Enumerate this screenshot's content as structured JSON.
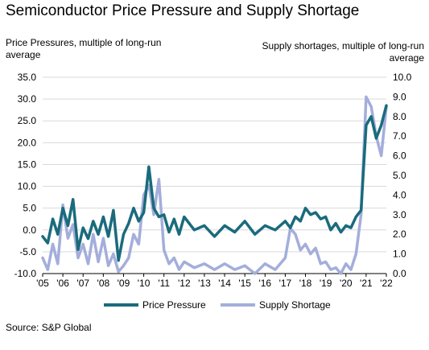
{
  "title": "Semiconductor Price Pressure and Supply Shortage",
  "source": "Source: S&P Global",
  "chart_data": {
    "type": "line",
    "title": "Semiconductor Price Pressure and Supply Shortage",
    "ylabel": "Price Pressures, multiple of long-run average",
    "y2label": "Supply shortages, multiple of long-run average",
    "ylim": [
      -10,
      35
    ],
    "y2lim": [
      0,
      10
    ],
    "xlim": [
      2005,
      2022
    ],
    "xticks": [
      "'05",
      "'06",
      "'07",
      "'08",
      "'09",
      "'10",
      "'11",
      "'12",
      "'13",
      "'14",
      "'15",
      "'16",
      "'17",
      "'18",
      "'19",
      "'20",
      "'21",
      "'22"
    ],
    "yticks": [
      "35.0",
      "30.0",
      "25.0",
      "20.0",
      "15.0",
      "10.0",
      "5.0",
      "0.0",
      "-5.0",
      "-10.0"
    ],
    "y2ticks": [
      "10.0",
      "9.0",
      "8.0",
      "7.0",
      "6.0",
      "5.0",
      "4.0",
      "3.0",
      "2.0",
      "1.0",
      "0.0"
    ],
    "grid": "horizontal",
    "legend_position": "bottom",
    "colors": {
      "price": "#1a6b7c",
      "supply": "#a4aedb",
      "grid": "#d9d9d9"
    },
    "series": [
      {
        "name": "Price Pressure",
        "axis": "left",
        "x": [
          2005.0,
          2005.25,
          2005.5,
          2005.75,
          2006.0,
          2006.25,
          2006.5,
          2006.75,
          2007.0,
          2007.25,
          2007.5,
          2007.75,
          2008.0,
          2008.25,
          2008.5,
          2008.75,
          2009.0,
          2009.25,
          2009.5,
          2009.75,
          2010.0,
          2010.25,
          2010.5,
          2010.75,
          2011.0,
          2011.25,
          2011.5,
          2011.75,
          2012.0,
          2012.5,
          2013.0,
          2013.5,
          2014.0,
          2014.5,
          2015.0,
          2015.5,
          2016.0,
          2016.5,
          2017.0,
          2017.25,
          2017.5,
          2017.75,
          2018.0,
          2018.25,
          2018.5,
          2018.75,
          2019.0,
          2019.25,
          2019.5,
          2019.75,
          2020.0,
          2020.25,
          2020.5,
          2020.75,
          2021.0,
          2021.25,
          2021.5,
          2021.75,
          2022.0
        ],
        "y": [
          -1.5,
          -3.0,
          2.5,
          -1.0,
          5.0,
          1.0,
          7.0,
          -4.5,
          0.5,
          -2.0,
          2.0,
          -1.0,
          3.0,
          -1.5,
          4.5,
          -7.0,
          -1.0,
          1.5,
          5.0,
          2.0,
          4.0,
          14.5,
          5.0,
          3.0,
          3.5,
          -0.5,
          2.5,
          -1.0,
          3.0,
          0.0,
          1.0,
          -1.5,
          1.0,
          -0.5,
          2.0,
          -1.0,
          1.0,
          0.0,
          2.0,
          0.5,
          3.0,
          2.0,
          5.0,
          3.5,
          4.0,
          2.5,
          3.0,
          0.0,
          1.5,
          -0.5,
          1.0,
          0.5,
          3.0,
          4.5,
          24.0,
          26.0,
          21.0,
          24.0,
          28.5
        ]
      },
      {
        "name": "Supply Shortage",
        "axis": "right",
        "x": [
          2005.0,
          2005.25,
          2005.5,
          2005.75,
          2006.0,
          2006.25,
          2006.5,
          2006.75,
          2007.0,
          2007.25,
          2007.5,
          2007.75,
          2008.0,
          2008.25,
          2008.5,
          2008.75,
          2009.0,
          2009.25,
          2009.5,
          2009.75,
          2010.0,
          2010.25,
          2010.5,
          2010.75,
          2011.0,
          2011.25,
          2011.5,
          2011.75,
          2012.0,
          2012.5,
          2013.0,
          2013.5,
          2014.0,
          2014.5,
          2015.0,
          2015.5,
          2016.0,
          2016.5,
          2017.0,
          2017.25,
          2017.5,
          2017.75,
          2018.0,
          2018.25,
          2018.5,
          2018.75,
          2019.0,
          2019.25,
          2019.5,
          2019.75,
          2020.0,
          2020.25,
          2020.5,
          2020.75,
          2021.0,
          2021.25,
          2021.5,
          2021.75,
          2022.0
        ],
        "y": [
          0.8,
          0.2,
          1.5,
          0.5,
          3.5,
          1.8,
          2.5,
          0.8,
          1.5,
          0.5,
          2.0,
          0.6,
          1.8,
          0.4,
          1.0,
          0.1,
          0.4,
          0.8,
          2.0,
          1.5,
          4.0,
          4.5,
          3.0,
          4.8,
          1.2,
          0.5,
          0.8,
          0.2,
          0.6,
          0.3,
          0.5,
          0.2,
          0.5,
          0.2,
          0.4,
          0.0,
          0.5,
          0.2,
          0.8,
          2.3,
          2.0,
          1.2,
          1.5,
          1.0,
          1.3,
          0.5,
          0.6,
          0.2,
          0.3,
          0.0,
          0.5,
          0.2,
          1.0,
          3.0,
          9.0,
          8.5,
          7.0,
          6.0,
          8.5
        ]
      }
    ]
  }
}
